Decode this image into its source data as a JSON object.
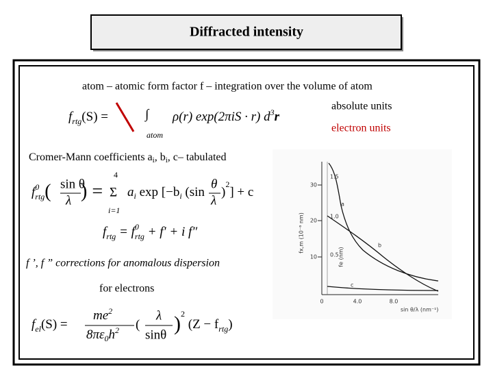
{
  "header": {
    "title": "Diffracted intensity"
  },
  "text": {
    "atom_line": "atom – atomic form factor f – integration over the volume of atom",
    "absolute_units": "absolute units",
    "electron_units": "electron units",
    "cromer_mann": {
      "a": "Cromer-Mann coefficients a",
      "i1": "i",
      "b": ", b",
      "i2": "i",
      "rest": ", c– tabulated"
    },
    "corrections": "f ’, f ” corrections for anomalous dispersion",
    "for_electrons": "for electrons"
  },
  "equations": {
    "eq1": {
      "f": "f",
      "sub": "rtg",
      "arg": "(S) = ",
      "integral": "∫",
      "under": "atom",
      "body": "ρ(r) exp(2πiS · r) d",
      "sup": "3",
      "end": "r"
    },
    "eq2": {
      "f": "f",
      "sup": "0",
      "sub": "rtg",
      "lpar": "(",
      "num": "sin θ",
      "den": "λ",
      "rpar": ") = ",
      "sum": "Σ",
      "sum_top": "4",
      "sum_bottom": "i=1",
      "body": "a",
      "body_sub": "i",
      "exp": " exp [−b",
      "exp_sub": "i",
      "paren": " (sin",
      "frac_num": "θ",
      "frac_den": "λ",
      "close": ")",
      "close_sup": "2",
      "end": "] + c"
    },
    "eq3": {
      "f": "f",
      "sub": "rtg",
      "eq": " = f",
      "sup0": "0",
      "sub0": "rtg",
      "rest": " + f′ + i f″"
    },
    "eq4": {
      "f": "f",
      "sub": "el",
      "arg": "(S) = ",
      "num": "me",
      "num_sup": "2",
      "den": "8πε",
      "den_sub": "0",
      "den_end": "h",
      "den_sup": "2",
      "lpar": "(",
      "lam": "λ",
      "sin": "sinθ",
      "rpar": ")",
      "sq": "2",
      "end": " (Z − f",
      "end_sub": "rtg",
      "close": ")"
    }
  },
  "figure": {
    "y_ticks_left": [
      "30",
      "20",
      "10"
    ],
    "y_ticks_inner": [
      "1.5",
      "1.0",
      "0.5"
    ],
    "x_ticks": [
      "0",
      "4.0",
      "8.0"
    ],
    "x_label": "sin θ/λ (nm⁻¹)",
    "y_label": "fx,m (10⁻⁶ nm)",
    "y_label_inner": "fe (nm)",
    "curves": [
      "a",
      "b",
      "c"
    ]
  }
}
